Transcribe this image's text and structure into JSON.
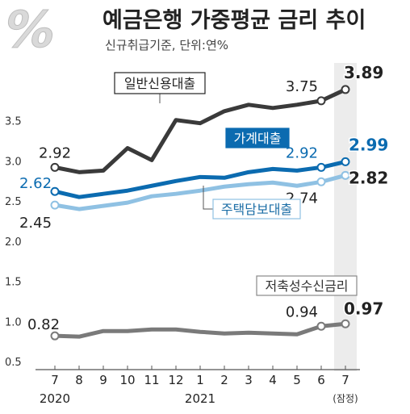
{
  "header": {
    "title": "예금은행 가중평균 금리 추이",
    "subtitle": "신규취급기준, 단위:연%",
    "logo_text": "%"
  },
  "colors": {
    "general_loan": "#3a3a3a",
    "household_loan": "#0b6bb0",
    "mortgage_loan": "#8fc1e3",
    "savings": "#7a7a7a",
    "highlight_band": "#ececec",
    "logo": "#d9d9d9"
  },
  "chart_data": {
    "type": "line",
    "title": "예금은행 가중평균 금리 추이",
    "subtitle": "신규취급기준, 단위:연%",
    "categories": [
      "7",
      "8",
      "9",
      "10",
      "11",
      "12",
      "1",
      "2",
      "3",
      "4",
      "5",
      "6",
      "7"
    ],
    "year_labels": [
      {
        "text": "2020",
        "at": "7"
      },
      {
        "text": "2021",
        "at": "1"
      }
    ],
    "note": "(잠정)",
    "yticks": [
      "3.5",
      "3.0",
      "2.5",
      "2.0",
      "1.5",
      "1.0",
      "0.5"
    ],
    "ylim": [
      0.5,
      4.0
    ],
    "grid": false,
    "series": [
      {
        "name": "일반신용대출",
        "color": "#3a3a3a",
        "values": [
          2.92,
          2.86,
          2.88,
          3.16,
          3.01,
          3.51,
          3.47,
          3.62,
          3.7,
          3.66,
          3.7,
          3.75,
          3.89
        ],
        "labels": [
          {
            "index": 0,
            "text": "2.92"
          },
          {
            "index": 11,
            "text": "3.75"
          },
          {
            "index": 12,
            "text": "3.89"
          }
        ]
      },
      {
        "name": "가계대출",
        "color": "#0b6bb0",
        "values": [
          2.62,
          2.55,
          2.59,
          2.63,
          2.69,
          2.75,
          2.8,
          2.79,
          2.86,
          2.9,
          2.88,
          2.92,
          2.99
        ],
        "labels": [
          {
            "index": 0,
            "text": "2.62"
          },
          {
            "index": 11,
            "text": "2.92"
          },
          {
            "index": 12,
            "text": "2.99"
          }
        ]
      },
      {
        "name": "주택담보대출",
        "color": "#8fc1e3",
        "values": [
          2.45,
          2.4,
          2.44,
          2.48,
          2.56,
          2.59,
          2.63,
          2.68,
          2.71,
          2.73,
          2.69,
          2.74,
          2.82
        ],
        "labels": [
          {
            "index": 0,
            "text": "2.45"
          },
          {
            "index": 11,
            "text": "2.74"
          },
          {
            "index": 12,
            "text": "2.82"
          }
        ]
      },
      {
        "name": "저축성수신금리",
        "color": "#7a7a7a",
        "values": [
          0.82,
          0.81,
          0.88,
          0.88,
          0.9,
          0.9,
          0.87,
          0.85,
          0.86,
          0.85,
          0.84,
          0.94,
          0.97
        ],
        "labels": [
          {
            "index": 0,
            "text": "0.82"
          },
          {
            "index": 11,
            "text": "0.94"
          },
          {
            "index": 12,
            "text": "0.97"
          }
        ]
      }
    ]
  }
}
